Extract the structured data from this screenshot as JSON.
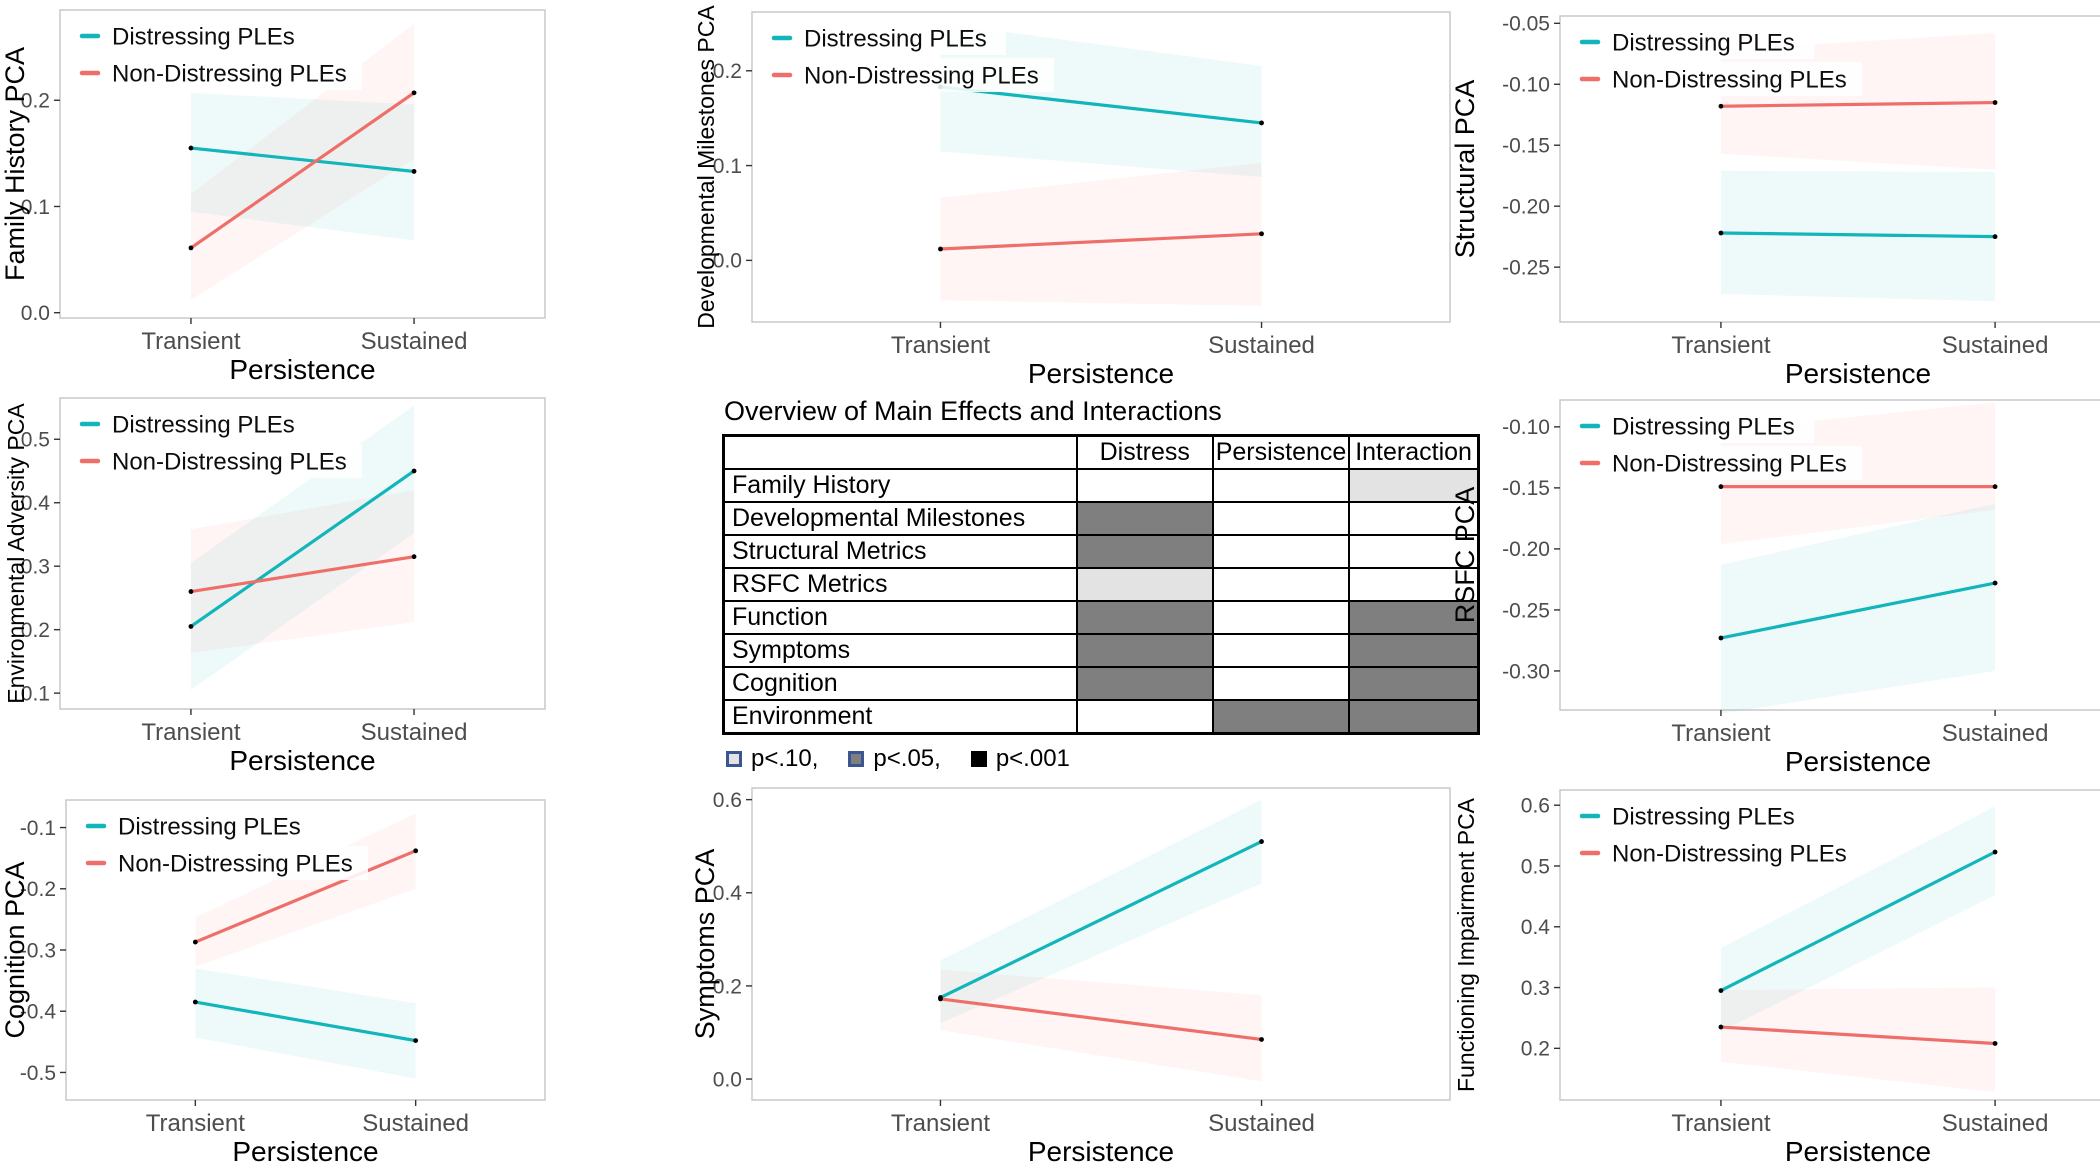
{
  "colors": {
    "distressing": "#12b5ba",
    "non_distressing": "#ee6f6a",
    "point": "#000000",
    "tick_text": "#4d4d4d",
    "axis_title": "#000000",
    "panel_border": "#c9c9c9",
    "cell_p05": "#7f7f7f",
    "cell_p10": "#e3e3e3",
    "cell_p001": "#000000",
    "swatch_border": "#3a5794"
  },
  "x_axis": {
    "label": "Persistence",
    "categories": [
      "Transient",
      "Sustained"
    ]
  },
  "series_labels": {
    "distressing": "Distressing PLEs",
    "non_distressing": "Non-Distressing PLEs"
  },
  "chart_data": [
    {
      "id": "family-history",
      "type": "line",
      "ylabel": "Family History PCA",
      "xlabel": "Persistence",
      "categories": [
        "Transient",
        "Sustained"
      ],
      "ytick_values": [
        0.0,
        0.1,
        0.2
      ],
      "ytick_labels": [
        "0.0",
        "0.1",
        "0.2"
      ],
      "ylim": [
        -0.005,
        0.285
      ],
      "legend": true,
      "series": [
        {
          "name": "Distressing PLEs",
          "key": "distressing",
          "values": [
            0.155,
            0.133
          ],
          "ci_lower": [
            0.095,
            0.068
          ],
          "ci_upper": [
            0.207,
            0.196
          ]
        },
        {
          "name": "Non-Distressing PLEs",
          "key": "non_distressing",
          "values": [
            0.061,
            0.207
          ],
          "ci_lower": [
            0.012,
            0.145
          ],
          "ci_upper": [
            0.112,
            0.272
          ]
        }
      ]
    },
    {
      "id": "developmental-milestones",
      "type": "line",
      "ylabel": "Developmental Milestones PCA",
      "xlabel": "Persistence",
      "categories": [
        "Transient",
        "Sustained"
      ],
      "ytick_values": [
        0.0,
        0.1,
        0.2
      ],
      "ytick_labels": [
        "0.0",
        "0.1",
        "0.2"
      ],
      "ylim": [
        -0.065,
        0.262
      ],
      "legend": true,
      "series": [
        {
          "name": "Distressing PLEs",
          "key": "distressing",
          "values": [
            0.183,
            0.145
          ],
          "ci_lower": [
            0.115,
            0.088
          ],
          "ci_upper": [
            0.25,
            0.205
          ]
        },
        {
          "name": "Non-Distressing PLEs",
          "key": "non_distressing",
          "values": [
            0.012,
            0.028
          ],
          "ci_lower": [
            -0.042,
            -0.048
          ],
          "ci_upper": [
            0.066,
            0.103
          ]
        }
      ]
    },
    {
      "id": "structural",
      "type": "line",
      "ylabel": "Structural PCA",
      "xlabel": "Persistence",
      "categories": [
        "Transient",
        "Sustained"
      ],
      "ytick_values": [
        -0.05,
        -0.1,
        -0.15,
        -0.2,
        -0.25
      ],
      "ytick_labels": [
        "-0.05",
        "-0.10",
        "-0.15",
        "-0.20",
        "-0.25"
      ],
      "ylim": [
        -0.295,
        -0.044
      ],
      "legend": true,
      "series": [
        {
          "name": "Distressing PLEs",
          "key": "distressing",
          "values": [
            -0.222,
            -0.225
          ],
          "ci_lower": [
            -0.272,
            -0.278
          ],
          "ci_upper": [
            -0.171,
            -0.172
          ]
        },
        {
          "name": "Non-Distressing PLEs",
          "key": "non_distressing",
          "values": [
            -0.118,
            -0.115
          ],
          "ci_lower": [
            -0.157,
            -0.17
          ],
          "ci_upper": [
            -0.072,
            -0.058
          ]
        }
      ]
    },
    {
      "id": "environmental-adversity",
      "type": "line",
      "ylabel": "Environmental Adversity PCA",
      "xlabel": "Persistence",
      "categories": [
        "Transient",
        "Sustained"
      ],
      "ytick_values": [
        0.1,
        0.2,
        0.3,
        0.4,
        0.5
      ],
      "ytick_labels": [
        "0.1",
        "0.2",
        "0.3",
        "0.4",
        "0.5"
      ],
      "ylim": [
        0.075,
        0.565
      ],
      "legend": true,
      "series": [
        {
          "name": "Distressing PLEs",
          "key": "distressing",
          "values": [
            0.205,
            0.45
          ],
          "ci_lower": [
            0.105,
            0.352
          ],
          "ci_upper": [
            0.305,
            0.553
          ]
        },
        {
          "name": "Non-Distressing PLEs",
          "key": "non_distressing",
          "values": [
            0.26,
            0.315
          ],
          "ci_lower": [
            0.163,
            0.212
          ],
          "ci_upper": [
            0.358,
            0.42
          ]
        }
      ]
    },
    {
      "id": "effects-table",
      "type": "table",
      "title": "Overview of Main Effects and Interactions",
      "columns": [
        "",
        "Distress",
        "Persistence",
        "Interaction"
      ],
      "rows": [
        {
          "label": "Family History",
          "cells": [
            "none",
            "none",
            "p10"
          ]
        },
        {
          "label": "Developmental Milestones",
          "cells": [
            "p05",
            "none",
            "none"
          ]
        },
        {
          "label": "Structural Metrics",
          "cells": [
            "p05",
            "none",
            "none"
          ]
        },
        {
          "label": "RSFC Metrics",
          "cells": [
            "p10",
            "none",
            "none"
          ]
        },
        {
          "label": "Function",
          "cells": [
            "p05",
            "none",
            "p05"
          ]
        },
        {
          "label": "Symptoms",
          "cells": [
            "p05",
            "none",
            "p05"
          ]
        },
        {
          "label": "Cognition",
          "cells": [
            "p05",
            "none",
            "p05"
          ]
        },
        {
          "label": "Environment",
          "cells": [
            "none",
            "p05",
            "p05"
          ]
        }
      ],
      "legend": [
        {
          "level": "p10",
          "label": "p<.10,"
        },
        {
          "level": "p05",
          "label": "p<.05,"
        },
        {
          "level": "p001",
          "label": "p<.001"
        }
      ]
    },
    {
      "id": "rsfc",
      "type": "line",
      "ylabel": "RSFC PCA",
      "xlabel": "Persistence",
      "categories": [
        "Transient",
        "Sustained"
      ],
      "ytick_values": [
        -0.1,
        -0.15,
        -0.2,
        -0.25,
        -0.3
      ],
      "ytick_labels": [
        "-0.10",
        "-0.15",
        "-0.20",
        "-0.25",
        "-0.30"
      ],
      "ylim": [
        -0.332,
        -0.078
      ],
      "legend": true,
      "series": [
        {
          "name": "Distressing PLEs",
          "key": "distressing",
          "values": [
            -0.273,
            -0.228
          ],
          "ci_lower": [
            -0.335,
            -0.3
          ],
          "ci_upper": [
            -0.213,
            -0.163
          ]
        },
        {
          "name": "Non-Distressing PLEs",
          "key": "non_distressing",
          "values": [
            -0.149,
            -0.149
          ],
          "ci_lower": [
            -0.196,
            -0.168
          ],
          "ci_upper": [
            -0.103,
            -0.08
          ]
        }
      ]
    },
    {
      "id": "cognition",
      "type": "line",
      "ylabel": "Cognition PCA",
      "xlabel": "Persistence",
      "categories": [
        "Transient",
        "Sustained"
      ],
      "ytick_values": [
        -0.1,
        -0.2,
        -0.3,
        -0.4,
        -0.5
      ],
      "ytick_labels": [
        "-0.1",
        "-0.2",
        "-0.3",
        "-0.4",
        "-0.5"
      ],
      "ylim": [
        -0.545,
        -0.055
      ],
      "legend": true,
      "series": [
        {
          "name": "Distressing PLEs",
          "key": "distressing",
          "values": [
            -0.385,
            -0.448
          ],
          "ci_lower": [
            -0.443,
            -0.51
          ],
          "ci_upper": [
            -0.33,
            -0.387
          ]
        },
        {
          "name": "Non-Distressing PLEs",
          "key": "non_distressing",
          "values": [
            -0.287,
            -0.138
          ],
          "ci_lower": [
            -0.327,
            -0.2
          ],
          "ci_upper": [
            -0.247,
            -0.077
          ]
        }
      ]
    },
    {
      "id": "symptoms",
      "type": "line",
      "ylabel": "Symptoms PCA",
      "xlabel": "Persistence",
      "categories": [
        "Transient",
        "Sustained"
      ],
      "ytick_values": [
        0.0,
        0.2,
        0.4,
        0.6
      ],
      "ytick_labels": [
        "0.0",
        "0.2",
        "0.4",
        "0.6"
      ],
      "ylim": [
        -0.045,
        0.625
      ],
      "legend": false,
      "series": [
        {
          "name": "Distressing PLEs",
          "key": "distressing",
          "values": [
            0.175,
            0.51
          ],
          "ci_lower": [
            0.12,
            0.42
          ],
          "ci_upper": [
            0.255,
            0.6
          ]
        },
        {
          "name": "Non-Distressing PLEs",
          "key": "non_distressing",
          "values": [
            0.172,
            0.085
          ],
          "ci_lower": [
            0.105,
            -0.005
          ],
          "ci_upper": [
            0.235,
            0.18
          ]
        }
      ]
    },
    {
      "id": "functioning-impairment",
      "type": "line",
      "ylabel": "Functioning Impairment PCA",
      "xlabel": "Persistence",
      "categories": [
        "Transient",
        "Sustained"
      ],
      "ytick_values": [
        0.2,
        0.3,
        0.4,
        0.5,
        0.6
      ],
      "ytick_labels": [
        "0.2",
        "0.3",
        "0.4",
        "0.5",
        "0.6"
      ],
      "ylim": [
        0.115,
        0.625
      ],
      "legend": true,
      "series": [
        {
          "name": "Distressing PLEs",
          "key": "distressing",
          "values": [
            0.295,
            0.523
          ],
          "ci_lower": [
            0.228,
            0.452
          ],
          "ci_upper": [
            0.365,
            0.598
          ]
        },
        {
          "name": "Non-Distressing PLEs",
          "key": "non_distressing",
          "values": [
            0.235,
            0.208
          ],
          "ci_lower": [
            0.178,
            0.128
          ],
          "ci_upper": [
            0.296,
            0.3
          ]
        }
      ]
    }
  ]
}
